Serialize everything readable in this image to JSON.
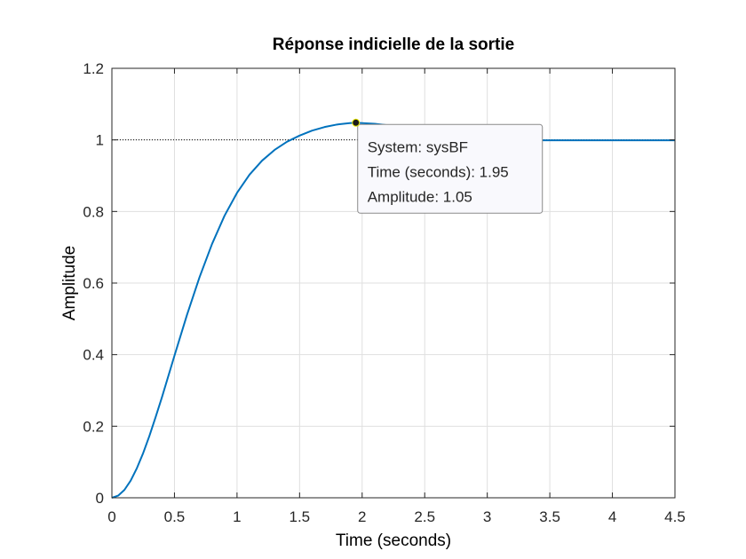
{
  "chart_data": {
    "type": "line",
    "title": "Réponse indicielle de la sortie",
    "xlabel": "Time (seconds)",
    "ylabel": "Amplitude",
    "xlim": [
      0,
      4.5
    ],
    "ylim": [
      0,
      1.2
    ],
    "xticks": [
      "0",
      "0.5",
      "1",
      "1.5",
      "2",
      "2.5",
      "3",
      "3.5",
      "4",
      "4.5"
    ],
    "yticks": [
      "0",
      "0.2",
      "0.4",
      "0.6",
      "0.8",
      "1",
      "1.2"
    ],
    "grid": true,
    "line_color": "#0072BD",
    "reference_line": {
      "y": 1,
      "style": "dotted"
    },
    "series": [
      {
        "x": [
          0,
          0.05,
          0.1,
          0.15,
          0.2,
          0.25,
          0.3,
          0.35,
          0.4,
          0.5,
          0.6,
          0.7,
          0.8,
          0.9,
          1.0,
          1.1,
          1.2,
          1.3,
          1.4,
          1.5,
          1.6,
          1.7,
          1.8,
          1.9,
          1.95,
          2.0,
          2.1,
          2.2,
          2.3,
          2.4,
          2.5,
          2.6,
          2.7,
          2.8,
          2.9,
          3.0,
          3.1,
          3.2,
          3.3,
          3.4,
          3.5,
          3.6,
          3.7,
          3.8,
          3.9,
          4.0,
          4.1,
          4.2,
          4.3,
          4.4,
          4.5
        ],
        "values": [
          0,
          0.006,
          0.022,
          0.048,
          0.083,
          0.125,
          0.173,
          0.226,
          0.281,
          0.397,
          0.511,
          0.616,
          0.709,
          0.788,
          0.852,
          0.903,
          0.942,
          0.972,
          0.995,
          1.012,
          1.026,
          1.036,
          1.043,
          1.047,
          1.048,
          1.047,
          1.045,
          1.041,
          1.035,
          1.029,
          1.022,
          1.016,
          1.011,
          1.007,
          1.004,
          1.002,
          1.001,
          1.0,
          0.999,
          0.999,
          0.999,
          0.999,
          0.999,
          0.999,
          0.999,
          0.999,
          0.999,
          0.999,
          0.999,
          0.999,
          0.999
        ]
      }
    ],
    "datatip": {
      "x": 1.95,
      "y": 1.048,
      "lines": [
        "System: sysBF",
        "Time (seconds): 1.95",
        "Amplitude: 1.05"
      ]
    }
  }
}
